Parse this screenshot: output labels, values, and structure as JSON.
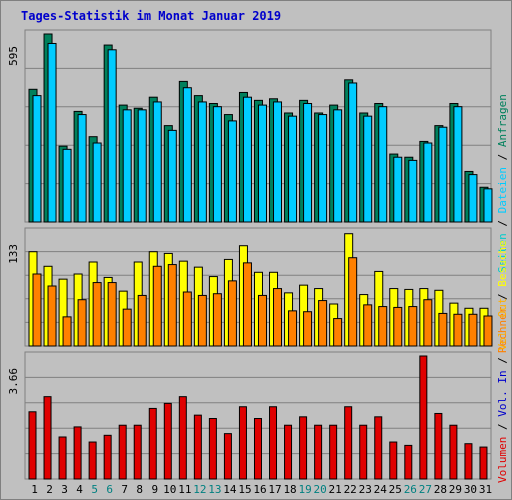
{
  "title": "Tages-Statistik im Monat Januar 2019",
  "colors": {
    "background": "#c0c0c0",
    "title": "#0000cc",
    "anfragen": "#00805c",
    "dateien": "#00ccff",
    "besuche": "#ffff00",
    "rechner": "#ff8000",
    "volumen": "#e00000",
    "weekend": "#008080",
    "weekday": "#000000",
    "seiten": "#00cccc",
    "vol_out": "#ffb000",
    "vol_in": "#0000cc"
  },
  "chart_data": [
    {
      "type": "bar",
      "name": "hits-panel",
      "categories": [
        "1",
        "2",
        "3",
        "4",
        "5",
        "6",
        "7",
        "8",
        "9",
        "10",
        "11",
        "12",
        "13",
        "14",
        "15",
        "16",
        "17",
        "18",
        "19",
        "20",
        "21",
        "22",
        "23",
        "24",
        "25",
        "26",
        "27",
        "28",
        "29",
        "30",
        "31"
      ],
      "weekend_categories": [
        "5",
        "6",
        "12",
        "13",
        "19",
        "20",
        "26",
        "27"
      ],
      "ymax_label": "595",
      "ylim": [
        0,
        595
      ],
      "series": [
        {
          "name": "Anfragen",
          "values": [
            420,
            595,
            240,
            350,
            270,
            560,
            370,
            360,
            395,
            305,
            445,
            400,
            375,
            340,
            410,
            385,
            390,
            345,
            385,
            345,
            370,
            450,
            345,
            375,
            215,
            205,
            255,
            305,
            375,
            160,
            110
          ]
        },
        {
          "name": "Dateien",
          "values": [
            400,
            565,
            230,
            340,
            250,
            545,
            355,
            355,
            380,
            290,
            425,
            380,
            365,
            320,
            395,
            370,
            380,
            335,
            375,
            340,
            355,
            440,
            335,
            365,
            205,
            195,
            250,
            300,
            365,
            150,
            105
          ]
        }
      ],
      "right_labels": [
        "Anfragen",
        "Dateien",
        "Seiten"
      ]
    },
    {
      "type": "bar",
      "name": "visits-panel",
      "categories": [
        "1",
        "2",
        "3",
        "4",
        "5",
        "6",
        "7",
        "8",
        "9",
        "10",
        "11",
        "12",
        "13",
        "14",
        "15",
        "16",
        "17",
        "18",
        "19",
        "20",
        "21",
        "22",
        "23",
        "24",
        "25",
        "26",
        "27",
        "28",
        "29",
        "30",
        "31"
      ],
      "ymax_label": "133",
      "ylim": [
        0,
        133
      ],
      "series": [
        {
          "name": "Besuche",
          "values": [
            110,
            93,
            78,
            84,
            98,
            80,
            64,
            98,
            110,
            108,
            99,
            92,
            81,
            101,
            117,
            86,
            86,
            62,
            71,
            67,
            49,
            131,
            60,
            87,
            67,
            66,
            67,
            65,
            50,
            44,
            44
          ]
        },
        {
          "name": "Rechner",
          "values": [
            84,
            70,
            34,
            54,
            74,
            74,
            43,
            59,
            93,
            95,
            63,
            59,
            61,
            76,
            97,
            59,
            67,
            41,
            40,
            53,
            32,
            103,
            48,
            46,
            45,
            46,
            54,
            38,
            37,
            37,
            35
          ]
        }
      ],
      "right_labels": [
        "Besuche",
        "Rechner"
      ]
    },
    {
      "type": "bar",
      "name": "volume-panel",
      "categories": [
        "1",
        "2",
        "3",
        "4",
        "5",
        "6",
        "7",
        "8",
        "9",
        "10",
        "11",
        "12",
        "13",
        "14",
        "15",
        "16",
        "17",
        "18",
        "19",
        "20",
        "21",
        "22",
        "23",
        "24",
        "25",
        "26",
        "27",
        "28",
        "29",
        "30",
        "31"
      ],
      "ymax_label": "3.66",
      "ylim": [
        0,
        3.66
      ],
      "series": [
        {
          "name": "Volumen",
          "values": [
            2.0,
            2.45,
            1.25,
            1.55,
            1.1,
            1.3,
            1.6,
            1.6,
            2.1,
            2.25,
            2.45,
            1.9,
            1.8,
            1.35,
            2.15,
            1.8,
            2.15,
            1.6,
            1.85,
            1.6,
            1.6,
            2.15,
            1.6,
            1.85,
            1.1,
            1.0,
            3.66,
            1.95,
            1.6,
            1.05,
            0.95
          ]
        }
      ],
      "right_labels": [
        "Volumen",
        "Vol. In",
        "Vol. Out"
      ]
    }
  ]
}
